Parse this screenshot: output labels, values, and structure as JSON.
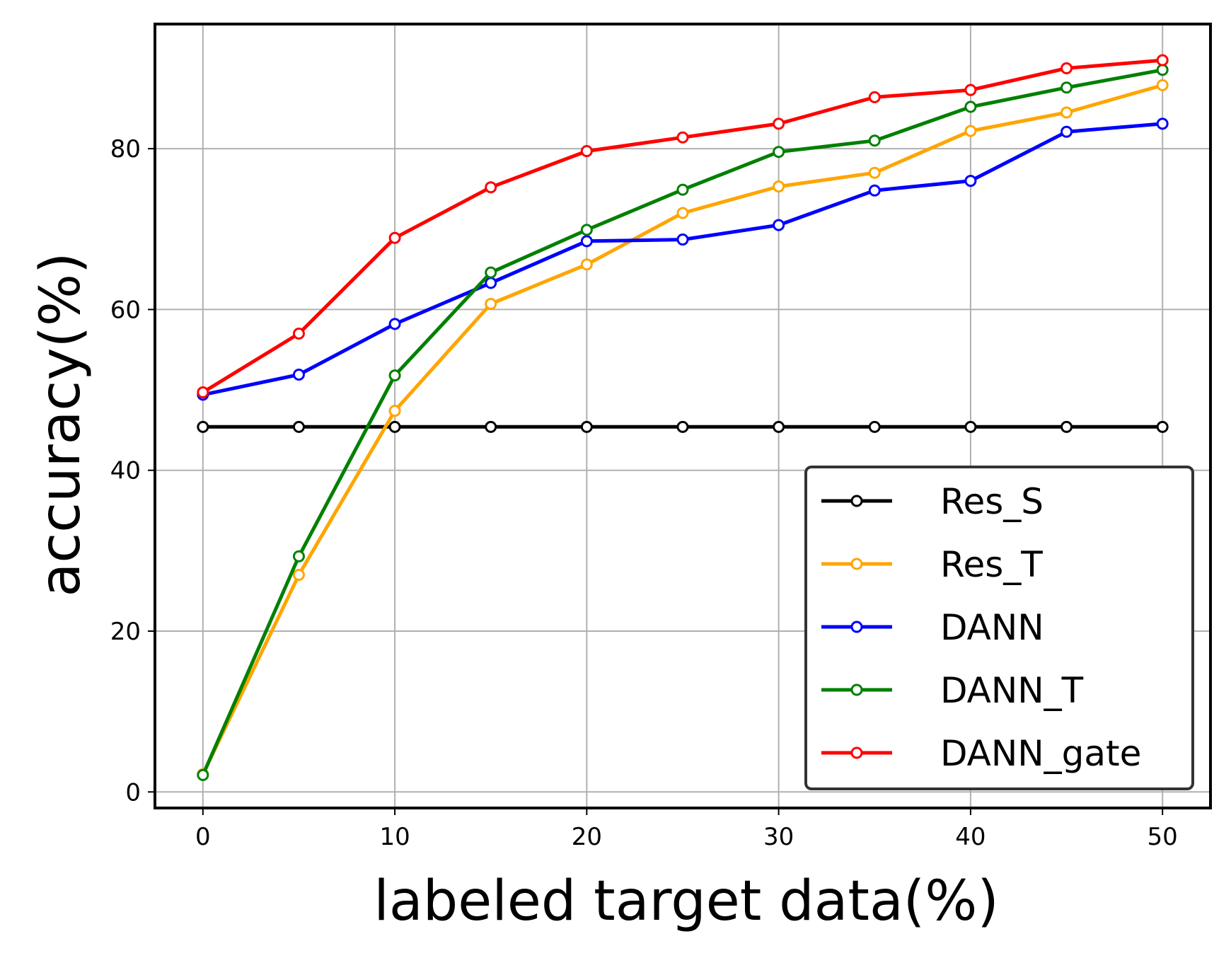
{
  "chart_data": {
    "type": "line",
    "xlabel": "labeled target data(%)",
    "ylabel": "accuracy(%)",
    "xlim": [
      -2.5,
      52.5
    ],
    "ylim": [
      -2,
      95.5
    ],
    "x_ticks": [
      0,
      10,
      20,
      30,
      40,
      50
    ],
    "y_ticks": [
      0,
      20,
      40,
      60,
      80
    ],
    "grid": true,
    "legend_position": "lower right",
    "x": [
      0,
      5,
      10,
      15,
      20,
      25,
      30,
      35,
      40,
      45,
      50
    ],
    "series": [
      {
        "name": "Res_S",
        "color": "#000000",
        "values": [
          45.4,
          45.4,
          45.4,
          45.4,
          45.4,
          45.4,
          45.4,
          45.4,
          45.4,
          45.4,
          45.4
        ]
      },
      {
        "name": "Res_T",
        "color": "#ffa500",
        "values": [
          2.2,
          27.0,
          47.4,
          60.7,
          65.6,
          72.0,
          75.3,
          77.0,
          82.2,
          84.5,
          87.9
        ]
      },
      {
        "name": "DANN",
        "color": "#0000ff",
        "values": [
          49.4,
          51.9,
          58.2,
          63.3,
          68.5,
          68.7,
          70.5,
          74.8,
          76.0,
          82.1,
          83.1
        ]
      },
      {
        "name": "DANN_T",
        "color": "#008000",
        "values": [
          2.1,
          29.3,
          51.8,
          64.6,
          69.9,
          74.9,
          79.6,
          81.0,
          85.2,
          87.6,
          89.8
        ]
      },
      {
        "name": "DANN_gate",
        "color": "#ff0000",
        "values": [
          49.7,
          57.0,
          68.9,
          75.2,
          79.7,
          81.4,
          83.1,
          86.4,
          87.3,
          90.0,
          91.0
        ]
      }
    ]
  }
}
